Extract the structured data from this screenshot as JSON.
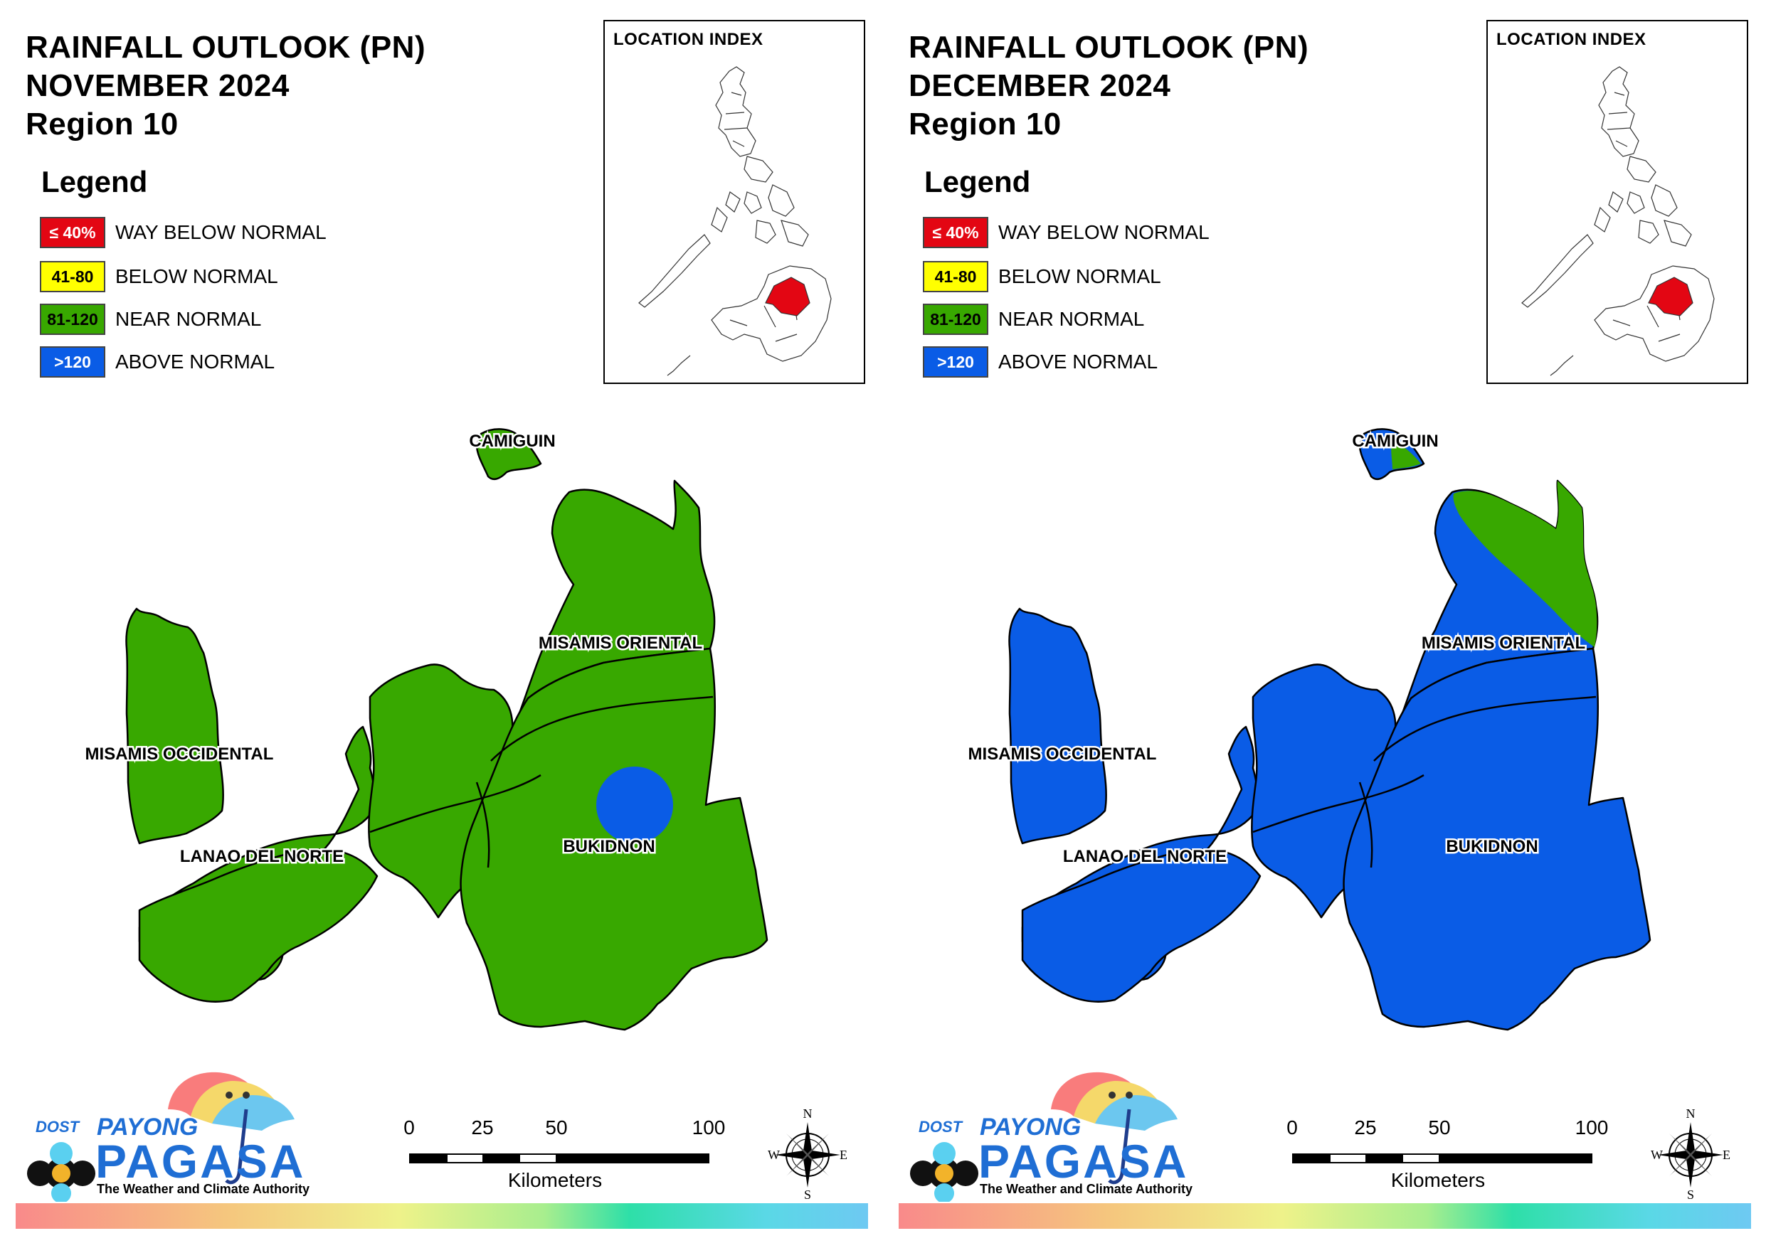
{
  "panels": [
    {
      "title_line1": "RAINFALL OUTLOOK (PN)",
      "title_line2": "NOVEMBER 2024",
      "title_line3": "Region 10",
      "legend_heading": "Legend",
      "legend_items": [
        {
          "swatch_text": "≤ 40%",
          "label": "WAY BELOW NORMAL",
          "color": "#e30613",
          "text_color": "#ffffff"
        },
        {
          "swatch_text": "41-80",
          "label": "BELOW NORMAL",
          "color": "#ffff00",
          "text_color": "#000000"
        },
        {
          "swatch_text": "81-120",
          "label": "NEAR NORMAL",
          "color": "#38a800",
          "text_color": "#000000"
        },
        {
          "swatch_text": ">120",
          "label": "ABOVE NORMAL",
          "color": "#0a5ce6",
          "text_color": "#ffffff"
        }
      ],
      "inset_title": "LOCATION INDEX",
      "provinces": {
        "camiguin": {
          "label": "CAMIGUIN",
          "category": "NEAR NORMAL"
        },
        "misamis_oriental": {
          "label": "MISAMIS ORIENTAL",
          "category": "NEAR NORMAL"
        },
        "misamis_occidental": {
          "label": "MISAMIS OCCIDENTAL",
          "category": "NEAR NORMAL"
        },
        "lanao_del_norte": {
          "label": "LANAO DEL NORTE",
          "category": "NEAR NORMAL"
        },
        "bukidnon": {
          "label": "BUKIDNON",
          "category": "NEAR NORMAL",
          "inner_area_category": "ABOVE NORMAL"
        }
      },
      "scale": {
        "ticks": [
          "0",
          "25",
          "50",
          "100"
        ],
        "unit": "Kilometers"
      },
      "compass": {
        "n": "N",
        "s": "S",
        "e": "E",
        "w": "W"
      },
      "logo": {
        "dost": "DOST",
        "payong": "PAYONG",
        "pagasa": "PAGASA",
        "tagline": "The Weather and Climate Authority"
      }
    },
    {
      "title_line1": "RAINFALL OUTLOOK (PN)",
      "title_line2": "DECEMBER 2024",
      "title_line3": "Region 10",
      "legend_heading": "Legend",
      "legend_items": [
        {
          "swatch_text": "≤ 40%",
          "label": "WAY BELOW NORMAL",
          "color": "#e30613",
          "text_color": "#ffffff"
        },
        {
          "swatch_text": "41-80",
          "label": "BELOW NORMAL",
          "color": "#ffff00",
          "text_color": "#000000"
        },
        {
          "swatch_text": "81-120",
          "label": "NEAR NORMAL",
          "color": "#38a800",
          "text_color": "#000000"
        },
        {
          "swatch_text": ">120",
          "label": "ABOVE NORMAL",
          "color": "#0a5ce6",
          "text_color": "#ffffff"
        }
      ],
      "inset_title": "LOCATION INDEX",
      "provinces": {
        "camiguin": {
          "label": "CAMIGUIN",
          "category": "ABOVE NORMAL",
          "partial_category": "NEAR NORMAL"
        },
        "misamis_oriental": {
          "label": "MISAMIS ORIENTAL",
          "category": "ABOVE NORMAL",
          "partial_category": "NEAR NORMAL"
        },
        "misamis_occidental": {
          "label": "MISAMIS OCCIDENTAL",
          "category": "ABOVE NORMAL"
        },
        "lanao_del_norte": {
          "label": "LANAO DEL NORTE",
          "category": "ABOVE NORMAL"
        },
        "bukidnon": {
          "label": "BUKIDNON",
          "category": "ABOVE NORMAL"
        }
      },
      "scale": {
        "ticks": [
          "0",
          "25",
          "50",
          "100"
        ],
        "unit": "Kilometers"
      },
      "compass": {
        "n": "N",
        "s": "S",
        "e": "E",
        "w": "W"
      },
      "logo": {
        "dost": "DOST",
        "payong": "PAYONG",
        "pagasa": "PAGASA",
        "tagline": "The Weather and Climate Authority"
      }
    }
  ]
}
